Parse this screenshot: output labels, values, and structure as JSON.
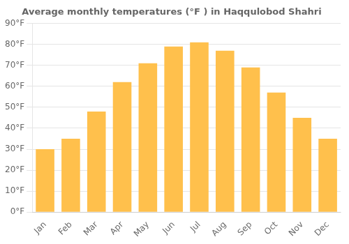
{
  "chart_data": {
    "type": "bar",
    "title": "Average monthly temperatures (°F ) in Haqqulobod Shahri",
    "categories": [
      "Jan",
      "Feb",
      "Mar",
      "Apr",
      "May",
      "Jun",
      "Jul",
      "Aug",
      "Sep",
      "Oct",
      "Nov",
      "Dec"
    ],
    "values": [
      30,
      35,
      48,
      62,
      71,
      79,
      81,
      77,
      69,
      57,
      45,
      35
    ],
    "color": "#FFC04C",
    "ylim": [
      0,
      90
    ],
    "yticks": [
      {
        "value": 0,
        "label": "0°F"
      },
      {
        "value": 10,
        "label": "10°F"
      },
      {
        "value": 20,
        "label": "20°F"
      },
      {
        "value": 30,
        "label": "30°F"
      },
      {
        "value": 40,
        "label": "40°F"
      },
      {
        "value": 50,
        "label": "50°F"
      },
      {
        "value": 60,
        "label": "60°F"
      },
      {
        "value": 70,
        "label": "70°F"
      },
      {
        "value": 80,
        "label": "80°F"
      },
      {
        "value": 90,
        "label": "90°F"
      }
    ],
    "grid": true
  }
}
